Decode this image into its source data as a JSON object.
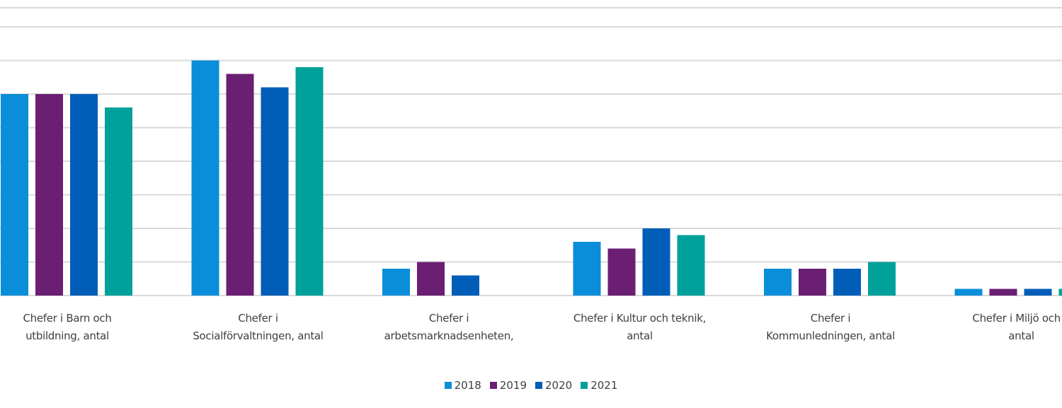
{
  "chart_data": {
    "type": "bar",
    "categories": [
      "Chefer i Barn och\nutbildning, antal",
      "Chefer i\nSocialförvaltningen, antal",
      "Chefer i\narbetsmarknadsenheten,",
      "Chefer i Kultur och teknik,\nantal",
      "Chefer i\nKommunledningen, antal",
      "Chefer i Miljö och b\nantal"
    ],
    "series": [
      {
        "name": "2018",
        "color": "#0a8ed9",
        "values": [
          6,
          7,
          0.8,
          1.6,
          0.8,
          0.2
        ]
      },
      {
        "name": "2019",
        "color": "#6b1f73",
        "values": [
          6,
          6.6,
          1.0,
          1.4,
          0.8,
          0.2
        ]
      },
      {
        "name": "2020",
        "color": "#005eb8",
        "values": [
          6,
          6.2,
          0.6,
          2,
          0.8,
          0.2
        ]
      },
      {
        "name": "2021",
        "color": "#00a19a",
        "values": [
          5.6,
          6.8,
          null,
          1.8,
          1.0,
          0.2
        ]
      }
    ],
    "ylim": [
      0,
      8
    ],
    "yticks": [
      0,
      1,
      2,
      3,
      4,
      5,
      6,
      7,
      8
    ],
    "grid": true,
    "legend": "bottom"
  }
}
